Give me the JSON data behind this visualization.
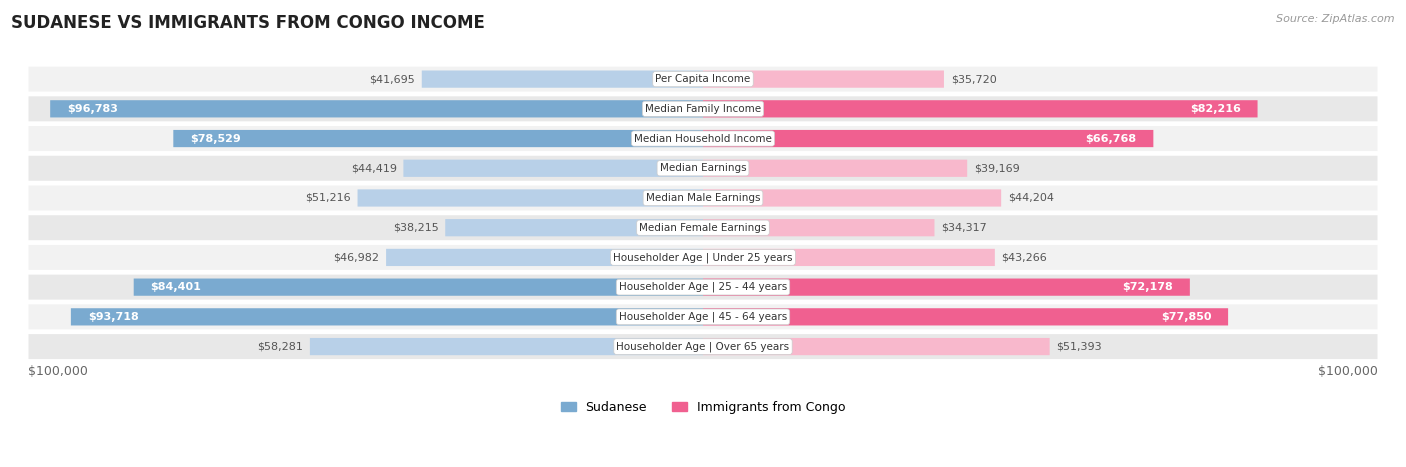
{
  "title": "SUDANESE VS IMMIGRANTS FROM CONGO INCOME",
  "source": "Source: ZipAtlas.com",
  "categories": [
    "Per Capita Income",
    "Median Family Income",
    "Median Household Income",
    "Median Earnings",
    "Median Male Earnings",
    "Median Female Earnings",
    "Householder Age | Under 25 years",
    "Householder Age | 25 - 44 years",
    "Householder Age | 45 - 64 years",
    "Householder Age | Over 65 years"
  ],
  "sudanese_values": [
    41695,
    96783,
    78529,
    44419,
    51216,
    38215,
    46982,
    84401,
    93718,
    58281
  ],
  "congo_values": [
    35720,
    82216,
    66768,
    39169,
    44204,
    34317,
    43266,
    72178,
    77850,
    51393
  ],
  "sudanese_labels": [
    "$41,695",
    "$96,783",
    "$78,529",
    "$44,419",
    "$51,216",
    "$38,215",
    "$46,982",
    "$84,401",
    "$93,718",
    "$58,281"
  ],
  "congo_labels": [
    "$35,720",
    "$82,216",
    "$66,768",
    "$39,169",
    "$44,204",
    "$34,317",
    "$43,266",
    "$72,178",
    "$77,850",
    "$51,393"
  ],
  "max_value": 100000,
  "sudanese_color_small": "#b8d0e8",
  "sudanese_color_large": "#7aaad0",
  "congo_color_small": "#f8b8cc",
  "congo_color_large": "#f06090",
  "label_color_outside": "#555555",
  "label_color_inside": "#ffffff",
  "background_color": "#ffffff",
  "row_bg_even": "#f2f2f2",
  "row_bg_odd": "#e8e8e8",
  "threshold_inside": 65000,
  "xlabel_left": "$100,000",
  "xlabel_right": "$100,000",
  "legend_sudanese": "Sudanese",
  "legend_congo": "Immigrants from Congo",
  "title_fontsize": 12,
  "source_fontsize": 8,
  "label_fontsize": 8,
  "cat_fontsize": 7.5
}
